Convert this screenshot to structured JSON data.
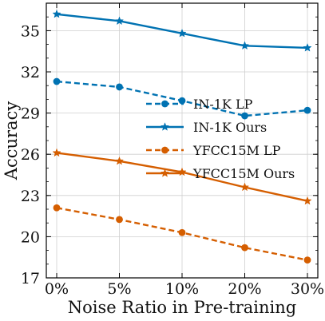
{
  "chart_data": {
    "type": "line",
    "xlabel": "Noise Ratio in Pre-training",
    "ylabel": "Accuracy",
    "categories": [
      "0%",
      "5%",
      "10%",
      "20%",
      "30%"
    ],
    "ylim": [
      17,
      37
    ],
    "yticks": [
      17,
      20,
      23,
      26,
      29,
      32,
      35
    ],
    "grid": true,
    "legend_position": "center-right",
    "series": [
      {
        "name": "IN-1K LP",
        "color": "#0072B2",
        "dashed": true,
        "marker": "circle",
        "values": [
          31.3,
          30.9,
          29.9,
          28.8,
          29.2
        ]
      },
      {
        "name": "IN-1K Ours",
        "color": "#0072B2",
        "dashed": false,
        "marker": "star",
        "values": [
          36.2,
          35.7,
          34.8,
          33.9,
          33.75
        ]
      },
      {
        "name": "YFCC15M LP",
        "color": "#D55E00",
        "dashed": true,
        "marker": "circle",
        "values": [
          22.1,
          21.25,
          20.3,
          19.2,
          18.3
        ]
      },
      {
        "name": "YFCC15M Ours",
        "color": "#D55E00",
        "dashed": false,
        "marker": "star",
        "values": [
          26.1,
          25.5,
          24.7,
          23.6,
          22.6
        ]
      }
    ]
  }
}
